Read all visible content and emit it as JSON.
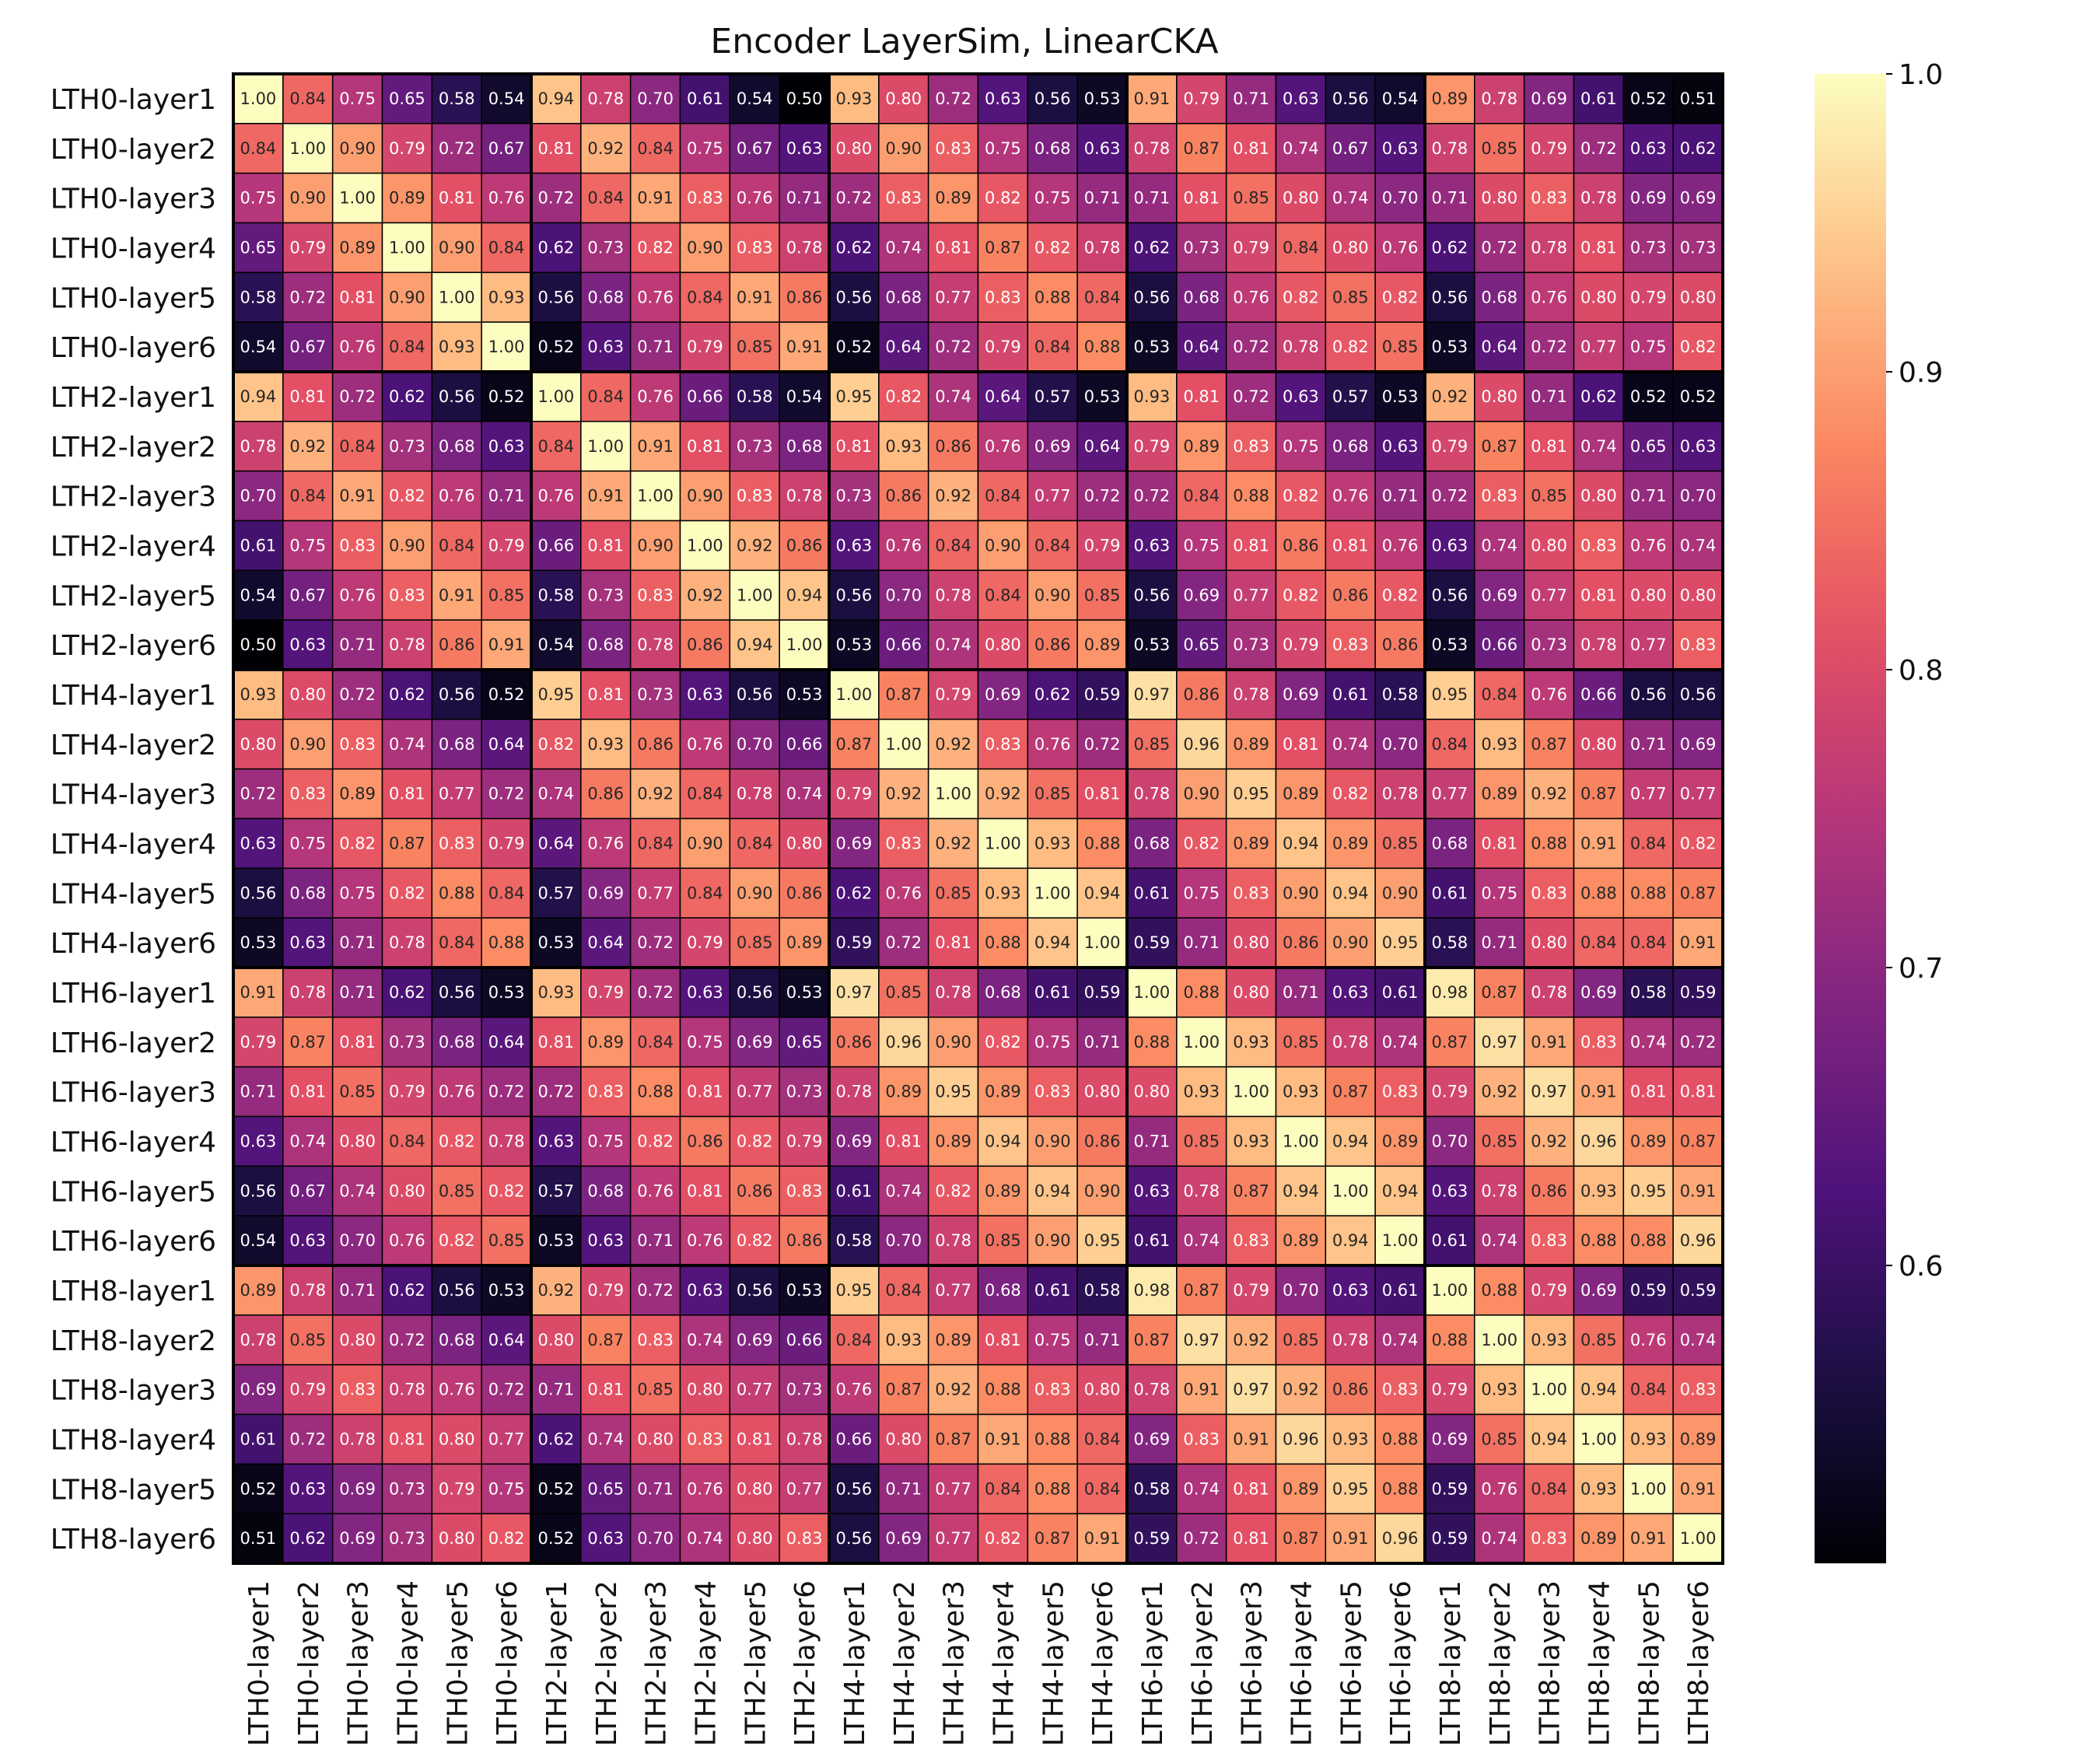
{
  "chart_data": {
    "type": "heatmap",
    "title": "Encoder LayerSim, LinearCKA",
    "labels": [
      "LTH0-layer1",
      "LTH0-layer2",
      "LTH0-layer3",
      "LTH0-layer4",
      "LTH0-layer5",
      "LTH0-layer6",
      "LTH2-layer1",
      "LTH2-layer2",
      "LTH2-layer3",
      "LTH2-layer4",
      "LTH2-layer5",
      "LTH2-layer6",
      "LTH4-layer1",
      "LTH4-layer2",
      "LTH4-layer3",
      "LTH4-layer4",
      "LTH4-layer5",
      "LTH4-layer6",
      "LTH6-layer1",
      "LTH6-layer2",
      "LTH6-layer3",
      "LTH6-layer4",
      "LTH6-layer5",
      "LTH6-layer6",
      "LTH8-layer1",
      "LTH8-layer2",
      "LTH8-layer3",
      "LTH8-layer4",
      "LTH8-layer5",
      "LTH8-layer6"
    ],
    "values": [
      [
        1.0,
        0.84,
        0.75,
        0.65,
        0.58,
        0.54,
        0.94,
        0.78,
        0.7,
        0.61,
        0.54,
        0.5,
        0.93,
        0.8,
        0.72,
        0.63,
        0.56,
        0.53,
        0.91,
        0.79,
        0.71,
        0.63,
        0.56,
        0.54,
        0.89,
        0.78,
        0.69,
        0.61,
        0.52,
        0.51
      ],
      [
        0.84,
        1.0,
        0.9,
        0.79,
        0.72,
        0.67,
        0.81,
        0.92,
        0.84,
        0.75,
        0.67,
        0.63,
        0.8,
        0.9,
        0.83,
        0.75,
        0.68,
        0.63,
        0.78,
        0.87,
        0.81,
        0.74,
        0.67,
        0.63,
        0.78,
        0.85,
        0.79,
        0.72,
        0.63,
        0.62
      ],
      [
        0.75,
        0.9,
        1.0,
        0.89,
        0.81,
        0.76,
        0.72,
        0.84,
        0.91,
        0.83,
        0.76,
        0.71,
        0.72,
        0.83,
        0.89,
        0.82,
        0.75,
        0.71,
        0.71,
        0.81,
        0.85,
        0.8,
        0.74,
        0.7,
        0.71,
        0.8,
        0.83,
        0.78,
        0.69,
        0.69
      ],
      [
        0.65,
        0.79,
        0.89,
        1.0,
        0.9,
        0.84,
        0.62,
        0.73,
        0.82,
        0.9,
        0.83,
        0.78,
        0.62,
        0.74,
        0.81,
        0.87,
        0.82,
        0.78,
        0.62,
        0.73,
        0.79,
        0.84,
        0.8,
        0.76,
        0.62,
        0.72,
        0.78,
        0.81,
        0.73,
        0.73
      ],
      [
        0.58,
        0.72,
        0.81,
        0.9,
        1.0,
        0.93,
        0.56,
        0.68,
        0.76,
        0.84,
        0.91,
        0.86,
        0.56,
        0.68,
        0.77,
        0.83,
        0.88,
        0.84,
        0.56,
        0.68,
        0.76,
        0.82,
        0.85,
        0.82,
        0.56,
        0.68,
        0.76,
        0.8,
        0.79,
        0.8
      ],
      [
        0.54,
        0.67,
        0.76,
        0.84,
        0.93,
        1.0,
        0.52,
        0.63,
        0.71,
        0.79,
        0.85,
        0.91,
        0.52,
        0.64,
        0.72,
        0.79,
        0.84,
        0.88,
        0.53,
        0.64,
        0.72,
        0.78,
        0.82,
        0.85,
        0.53,
        0.64,
        0.72,
        0.77,
        0.75,
        0.82
      ],
      [
        0.94,
        0.81,
        0.72,
        0.62,
        0.56,
        0.52,
        1.0,
        0.84,
        0.76,
        0.66,
        0.58,
        0.54,
        0.95,
        0.82,
        0.74,
        0.64,
        0.57,
        0.53,
        0.93,
        0.81,
        0.72,
        0.63,
        0.57,
        0.53,
        0.92,
        0.8,
        0.71,
        0.62,
        0.52,
        0.52
      ],
      [
        0.78,
        0.92,
        0.84,
        0.73,
        0.68,
        0.63,
        0.84,
        1.0,
        0.91,
        0.81,
        0.73,
        0.68,
        0.81,
        0.93,
        0.86,
        0.76,
        0.69,
        0.64,
        0.79,
        0.89,
        0.83,
        0.75,
        0.68,
        0.63,
        0.79,
        0.87,
        0.81,
        0.74,
        0.65,
        0.63
      ],
      [
        0.7,
        0.84,
        0.91,
        0.82,
        0.76,
        0.71,
        0.76,
        0.91,
        1.0,
        0.9,
        0.83,
        0.78,
        0.73,
        0.86,
        0.92,
        0.84,
        0.77,
        0.72,
        0.72,
        0.84,
        0.88,
        0.82,
        0.76,
        0.71,
        0.72,
        0.83,
        0.85,
        0.8,
        0.71,
        0.7
      ],
      [
        0.61,
        0.75,
        0.83,
        0.9,
        0.84,
        0.79,
        0.66,
        0.81,
        0.9,
        1.0,
        0.92,
        0.86,
        0.63,
        0.76,
        0.84,
        0.9,
        0.84,
        0.79,
        0.63,
        0.75,
        0.81,
        0.86,
        0.81,
        0.76,
        0.63,
        0.74,
        0.8,
        0.83,
        0.76,
        0.74
      ],
      [
        0.54,
        0.67,
        0.76,
        0.83,
        0.91,
        0.85,
        0.58,
        0.73,
        0.83,
        0.92,
        1.0,
        0.94,
        0.56,
        0.7,
        0.78,
        0.84,
        0.9,
        0.85,
        0.56,
        0.69,
        0.77,
        0.82,
        0.86,
        0.82,
        0.56,
        0.69,
        0.77,
        0.81,
        0.8,
        0.8
      ],
      [
        0.5,
        0.63,
        0.71,
        0.78,
        0.86,
        0.91,
        0.54,
        0.68,
        0.78,
        0.86,
        0.94,
        1.0,
        0.53,
        0.66,
        0.74,
        0.8,
        0.86,
        0.89,
        0.53,
        0.65,
        0.73,
        0.79,
        0.83,
        0.86,
        0.53,
        0.66,
        0.73,
        0.78,
        0.77,
        0.83
      ],
      [
        0.93,
        0.8,
        0.72,
        0.62,
        0.56,
        0.52,
        0.95,
        0.81,
        0.73,
        0.63,
        0.56,
        0.53,
        1.0,
        0.87,
        0.79,
        0.69,
        0.62,
        0.59,
        0.97,
        0.86,
        0.78,
        0.69,
        0.61,
        0.58,
        0.95,
        0.84,
        0.76,
        0.66,
        0.56,
        0.56
      ],
      [
        0.8,
        0.9,
        0.83,
        0.74,
        0.68,
        0.64,
        0.82,
        0.93,
        0.86,
        0.76,
        0.7,
        0.66,
        0.87,
        1.0,
        0.92,
        0.83,
        0.76,
        0.72,
        0.85,
        0.96,
        0.89,
        0.81,
        0.74,
        0.7,
        0.84,
        0.93,
        0.87,
        0.8,
        0.71,
        0.69
      ],
      [
        0.72,
        0.83,
        0.89,
        0.81,
        0.77,
        0.72,
        0.74,
        0.86,
        0.92,
        0.84,
        0.78,
        0.74,
        0.79,
        0.92,
        1.0,
        0.92,
        0.85,
        0.81,
        0.78,
        0.9,
        0.95,
        0.89,
        0.82,
        0.78,
        0.77,
        0.89,
        0.92,
        0.87,
        0.77,
        0.77
      ],
      [
        0.63,
        0.75,
        0.82,
        0.87,
        0.83,
        0.79,
        0.64,
        0.76,
        0.84,
        0.9,
        0.84,
        0.8,
        0.69,
        0.83,
        0.92,
        1.0,
        0.93,
        0.88,
        0.68,
        0.82,
        0.89,
        0.94,
        0.89,
        0.85,
        0.68,
        0.81,
        0.88,
        0.91,
        0.84,
        0.82
      ],
      [
        0.56,
        0.68,
        0.75,
        0.82,
        0.88,
        0.84,
        0.57,
        0.69,
        0.77,
        0.84,
        0.9,
        0.86,
        0.62,
        0.76,
        0.85,
        0.93,
        1.0,
        0.94,
        0.61,
        0.75,
        0.83,
        0.9,
        0.94,
        0.9,
        0.61,
        0.75,
        0.83,
        0.88,
        0.88,
        0.87
      ],
      [
        0.53,
        0.63,
        0.71,
        0.78,
        0.84,
        0.88,
        0.53,
        0.64,
        0.72,
        0.79,
        0.85,
        0.89,
        0.59,
        0.72,
        0.81,
        0.88,
        0.94,
        1.0,
        0.59,
        0.71,
        0.8,
        0.86,
        0.9,
        0.95,
        0.58,
        0.71,
        0.8,
        0.84,
        0.84,
        0.91
      ],
      [
        0.91,
        0.78,
        0.71,
        0.62,
        0.56,
        0.53,
        0.93,
        0.79,
        0.72,
        0.63,
        0.56,
        0.53,
        0.97,
        0.85,
        0.78,
        0.68,
        0.61,
        0.59,
        1.0,
        0.88,
        0.8,
        0.71,
        0.63,
        0.61,
        0.98,
        0.87,
        0.78,
        0.69,
        0.58,
        0.59
      ],
      [
        0.79,
        0.87,
        0.81,
        0.73,
        0.68,
        0.64,
        0.81,
        0.89,
        0.84,
        0.75,
        0.69,
        0.65,
        0.86,
        0.96,
        0.9,
        0.82,
        0.75,
        0.71,
        0.88,
        1.0,
        0.93,
        0.85,
        0.78,
        0.74,
        0.87,
        0.97,
        0.91,
        0.83,
        0.74,
        0.72
      ],
      [
        0.71,
        0.81,
        0.85,
        0.79,
        0.76,
        0.72,
        0.72,
        0.83,
        0.88,
        0.81,
        0.77,
        0.73,
        0.78,
        0.89,
        0.95,
        0.89,
        0.83,
        0.8,
        0.8,
        0.93,
        1.0,
        0.93,
        0.87,
        0.83,
        0.79,
        0.92,
        0.97,
        0.91,
        0.81,
        0.81
      ],
      [
        0.63,
        0.74,
        0.8,
        0.84,
        0.82,
        0.78,
        0.63,
        0.75,
        0.82,
        0.86,
        0.82,
        0.79,
        0.69,
        0.81,
        0.89,
        0.94,
        0.9,
        0.86,
        0.71,
        0.85,
        0.93,
        1.0,
        0.94,
        0.89,
        0.7,
        0.85,
        0.92,
        0.96,
        0.89,
        0.87
      ],
      [
        0.56,
        0.67,
        0.74,
        0.8,
        0.85,
        0.82,
        0.57,
        0.68,
        0.76,
        0.81,
        0.86,
        0.83,
        0.61,
        0.74,
        0.82,
        0.89,
        0.94,
        0.9,
        0.63,
        0.78,
        0.87,
        0.94,
        1.0,
        0.94,
        0.63,
        0.78,
        0.86,
        0.93,
        0.95,
        0.91
      ],
      [
        0.54,
        0.63,
        0.7,
        0.76,
        0.82,
        0.85,
        0.53,
        0.63,
        0.71,
        0.76,
        0.82,
        0.86,
        0.58,
        0.7,
        0.78,
        0.85,
        0.9,
        0.95,
        0.61,
        0.74,
        0.83,
        0.89,
        0.94,
        1.0,
        0.61,
        0.74,
        0.83,
        0.88,
        0.88,
        0.96
      ],
      [
        0.89,
        0.78,
        0.71,
        0.62,
        0.56,
        0.53,
        0.92,
        0.79,
        0.72,
        0.63,
        0.56,
        0.53,
        0.95,
        0.84,
        0.77,
        0.68,
        0.61,
        0.58,
        0.98,
        0.87,
        0.79,
        0.7,
        0.63,
        0.61,
        1.0,
        0.88,
        0.79,
        0.69,
        0.59,
        0.59
      ],
      [
        0.78,
        0.85,
        0.8,
        0.72,
        0.68,
        0.64,
        0.8,
        0.87,
        0.83,
        0.74,
        0.69,
        0.66,
        0.84,
        0.93,
        0.89,
        0.81,
        0.75,
        0.71,
        0.87,
        0.97,
        0.92,
        0.85,
        0.78,
        0.74,
        0.88,
        1.0,
        0.93,
        0.85,
        0.76,
        0.74
      ],
      [
        0.69,
        0.79,
        0.83,
        0.78,
        0.76,
        0.72,
        0.71,
        0.81,
        0.85,
        0.8,
        0.77,
        0.73,
        0.76,
        0.87,
        0.92,
        0.88,
        0.83,
        0.8,
        0.78,
        0.91,
        0.97,
        0.92,
        0.86,
        0.83,
        0.79,
        0.93,
        1.0,
        0.94,
        0.84,
        0.83
      ],
      [
        0.61,
        0.72,
        0.78,
        0.81,
        0.8,
        0.77,
        0.62,
        0.74,
        0.8,
        0.83,
        0.81,
        0.78,
        0.66,
        0.8,
        0.87,
        0.91,
        0.88,
        0.84,
        0.69,
        0.83,
        0.91,
        0.96,
        0.93,
        0.88,
        0.69,
        0.85,
        0.94,
        1.0,
        0.93,
        0.89
      ],
      [
        0.52,
        0.63,
        0.69,
        0.73,
        0.79,
        0.75,
        0.52,
        0.65,
        0.71,
        0.76,
        0.8,
        0.77,
        0.56,
        0.71,
        0.77,
        0.84,
        0.88,
        0.84,
        0.58,
        0.74,
        0.81,
        0.89,
        0.95,
        0.88,
        0.59,
        0.76,
        0.84,
        0.93,
        1.0,
        0.91
      ],
      [
        0.51,
        0.62,
        0.69,
        0.73,
        0.8,
        0.82,
        0.52,
        0.63,
        0.7,
        0.74,
        0.8,
        0.83,
        0.56,
        0.69,
        0.77,
        0.82,
        0.87,
        0.91,
        0.59,
        0.72,
        0.81,
        0.87,
        0.91,
        0.96,
        0.59,
        0.74,
        0.83,
        0.89,
        0.91,
        1.0
      ]
    ],
    "vmin": 0.5,
    "vmax": 1.0,
    "colormap": "magma",
    "colorbar_ticks": [
      "0.6",
      "0.7",
      "0.8",
      "0.9",
      "1.0"
    ],
    "group_size": 6
  }
}
